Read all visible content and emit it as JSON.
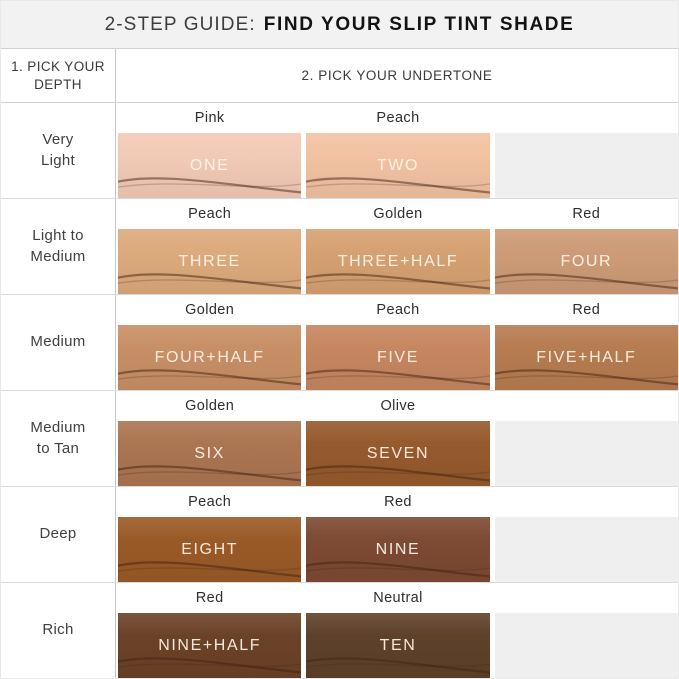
{
  "title": {
    "prefix": "2-STEP GUIDE:",
    "main": "FIND YOUR SLIP TINT SHADE"
  },
  "headers": {
    "depth_line1": "1. PICK YOUR",
    "depth_line2": "DEPTH",
    "undertone": "2. PICK YOUR UNDERTONE"
  },
  "colors": {
    "title_bar_bg": "#f2f2f2",
    "placeholder": "#efefef"
  },
  "rows": [
    {
      "depth": [
        "Very",
        "Light"
      ],
      "cells": [
        {
          "undertone": "Pink",
          "shade": "ONE",
          "color": "#f2cab6"
        },
        {
          "undertone": "Peach",
          "shade": "TWO",
          "color": "#f2c2a2"
        },
        null
      ]
    },
    {
      "depth": [
        "Light to",
        "Medium"
      ],
      "cells": [
        {
          "undertone": "Peach",
          "shade": "THREE",
          "color": "#dcaa7c"
        },
        {
          "undertone": "Golden",
          "shade": "THREE+HALF",
          "color": "#d6a172"
        },
        {
          "undertone": "Red",
          "shade": "FOUR",
          "color": "#cd9b77"
        }
      ]
    },
    {
      "depth": [
        "Medium"
      ],
      "cells": [
        {
          "undertone": "Golden",
          "shade": "FOUR+HALF",
          "color": "#c88f66"
        },
        {
          "undertone": "Peach",
          "shade": "FIVE",
          "color": "#c68660"
        },
        {
          "undertone": "Red",
          "shade": "FIVE+HALF",
          "color": "#b77c50"
        }
      ]
    },
    {
      "depth": [
        "Medium",
        "to Tan"
      ],
      "cells": [
        {
          "undertone": "Golden",
          "shade": "SIX",
          "color": "#ab7551"
        },
        {
          "undertone": "Olive",
          "shade": "SEVEN",
          "color": "#965a2c"
        },
        null
      ]
    },
    {
      "depth": [
        "Deep"
      ],
      "cells": [
        {
          "undertone": "Peach",
          "shade": "EIGHT",
          "color": "#9a5a27"
        },
        {
          "undertone": "Red",
          "shade": "NINE",
          "color": "#7d4a33"
        },
        null
      ]
    },
    {
      "depth": [
        "Rich"
      ],
      "cells": [
        {
          "undertone": "Red",
          "shade": "NINE+HALF",
          "color": "#6b4227"
        },
        {
          "undertone": "Neutral",
          "shade": "TEN",
          "color": "#5f412a"
        },
        null
      ]
    }
  ]
}
